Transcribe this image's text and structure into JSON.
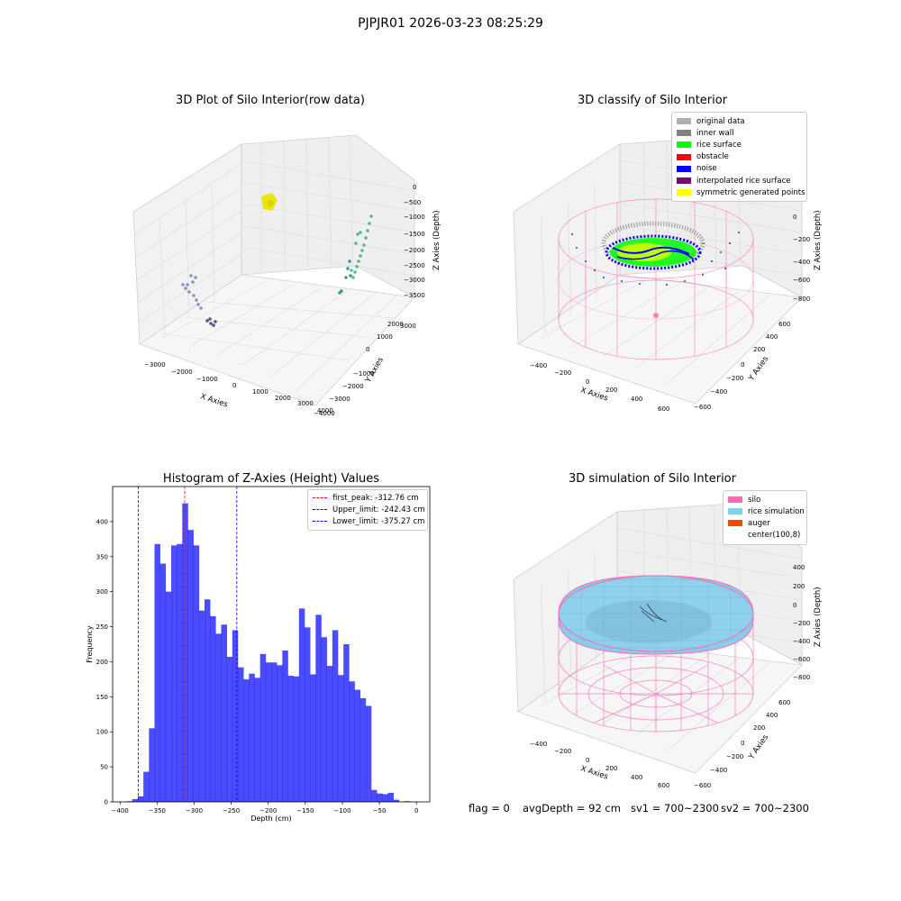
{
  "figure": {
    "suptitle": "PJPJR01 2026-03-23 08:25:29"
  },
  "panels": {
    "raw": {
      "title": "3D Plot of Silo Interior(row data)",
      "xlabel": "X Axies",
      "ylabel": "Y Axies",
      "zlabel": "Z Axies (Depth)",
      "xticks": [
        "−3000",
        "−2000",
        "−1000",
        "0",
        "1000",
        "2000",
        "3000",
        "4000"
      ],
      "yticks": [
        "−4000",
        "−3000",
        "−2000",
        "−1000",
        "0",
        "1000",
        "2000",
        "3000"
      ],
      "zticks": [
        "0",
        "−500",
        "−1000",
        "−1500",
        "−2000",
        "−2500",
        "−3000",
        "−3500"
      ]
    },
    "classify": {
      "title": "3D classify of Silo Interior",
      "xlabel": "X Axies",
      "ylabel": "Y Axies",
      "zlabel": "Z Axies (Depth)",
      "xticks": [
        "−400",
        "−200",
        "0",
        "200",
        "400",
        "600"
      ],
      "yticks": [
        "−600",
        "−400",
        "−200",
        "0",
        "200",
        "400",
        "600"
      ],
      "zticks": [
        "200",
        "0",
        "−200",
        "−400",
        "−600",
        "−800"
      ],
      "legend": [
        {
          "label": "original data",
          "color": "#b0b0b0"
        },
        {
          "label": "inner wall",
          "color": "#808080"
        },
        {
          "label": "rice surface",
          "color": "#00ff00"
        },
        {
          "label": "obstacle",
          "color": "#ff0000"
        },
        {
          "label": "noise",
          "color": "#0000ff"
        },
        {
          "label": "interpolated rice surface",
          "color": "#800080"
        },
        {
          "label": "symmetric generated points",
          "color": "#ffff00"
        }
      ]
    },
    "simulation": {
      "title": "3D simulation of Silo Interior",
      "xlabel": "X Axies",
      "ylabel": "Y Axies",
      "zlabel": "Z Axies (Depth)",
      "xticks": [
        "−400",
        "−200",
        "0",
        "200",
        "400",
        "600"
      ],
      "yticks": [
        "−600",
        "−400",
        "−200",
        "0",
        "200",
        "400",
        "600"
      ],
      "zticks": [
        "400",
        "200",
        "0",
        "−200",
        "−400",
        "−600",
        "−800"
      ],
      "legend": [
        {
          "label": "silo",
          "color": "#ff69b4"
        },
        {
          "label": "rice simulation",
          "color": "#87ceeb"
        },
        {
          "label": "auger",
          "color": "#ff4500"
        },
        {
          "label": "center(100,8)",
          "color": "#ffffff"
        }
      ]
    }
  },
  "footer": {
    "flag": "flag = 0",
    "avg_depth": "avgDepth = 92 cm",
    "sv1": "sv1 = 700~2300",
    "sv2": "sv2 = 700~2300"
  },
  "chart_data": [
    {
      "type": "bar",
      "title": "Histogram of Z-Axies (Height) Values",
      "xlabel": "Depth (cm)",
      "ylabel": "Frequency",
      "xlim": [
        -410,
        18
      ],
      "ylim": [
        0,
        450
      ],
      "bar_color": "#0000ff",
      "bin_width": 7.5,
      "bin_starts": [
        -391,
        -383.5,
        -376,
        -368.5,
        -361,
        -353.5,
        -346,
        -338.5,
        -331,
        -323.5,
        -316,
        -308.5,
        -301,
        -293.5,
        -286,
        -278.5,
        -271,
        -263.5,
        -256,
        -248.5,
        -241,
        -233.5,
        -226,
        -218.5,
        -211,
        -203.5,
        -196,
        -188.5,
        -181,
        -173.5,
        -166,
        -158.5,
        -151,
        -143.5,
        -136,
        -128.5,
        -121,
        -113.5,
        -106,
        -98.5,
        -91,
        -83.5,
        -76,
        -68.5,
        -61,
        -53.5,
        -46,
        -38.5,
        -31,
        -23.5,
        -16,
        -8.5,
        -1
      ],
      "values": [
        1,
        4,
        8,
        43,
        105,
        368,
        340,
        300,
        366,
        368,
        426,
        388,
        366,
        273,
        289,
        265,
        240,
        253,
        207,
        245,
        192,
        175,
        183,
        177,
        211,
        199,
        199,
        195,
        216,
        180,
        179,
        276,
        249,
        182,
        267,
        235,
        194,
        245,
        181,
        225,
        172,
        160,
        148,
        137,
        17,
        12,
        11,
        13,
        3,
        0,
        1,
        0,
        0
      ],
      "xticks": [
        "−400",
        "−350",
        "−300",
        "−250",
        "−200",
        "−150",
        "−100",
        "−50",
        "0"
      ],
      "yticks": [
        "0",
        "50",
        "100",
        "150",
        "200",
        "250",
        "300",
        "350",
        "400"
      ],
      "ytick_values": [
        0,
        50,
        100,
        150,
        200,
        250,
        300,
        350,
        400
      ],
      "xtick_values": [
        -400,
        -350,
        -300,
        -250,
        -200,
        -150,
        -100,
        -50,
        0
      ],
      "vlines": [
        {
          "label": "first_peak: -312.76 cm",
          "x": -312.76,
          "color": "#ff0000"
        },
        {
          "label": "Upper_limit: -242.43 cm",
          "x": -242.43,
          "color": "#0000ff"
        },
        {
          "label": "Lower_limit: -375.27 cm",
          "x": -375.27,
          "color": "#0000ff"
        }
      ],
      "legend_position": "upper right"
    }
  ]
}
